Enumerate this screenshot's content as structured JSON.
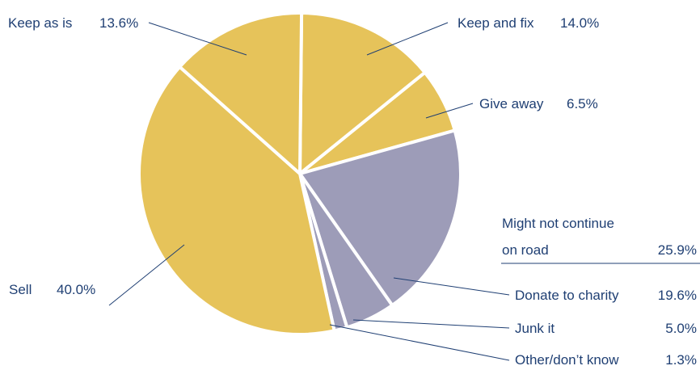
{
  "chart_data": {
    "type": "pie",
    "title": "",
    "slices": [
      {
        "label": "Keep and fix",
        "value": 14.0,
        "display": "14.0%",
        "color": "#e6c35a"
      },
      {
        "label": "Give away",
        "value": 6.5,
        "display": "6.5%",
        "color": "#e6c35a"
      },
      {
        "label": "Donate to charity",
        "value": 19.6,
        "display": "19.6%",
        "color": "#9d9cb8"
      },
      {
        "label": "Junk it",
        "value": 5.0,
        "display": "5.0%",
        "color": "#9d9cb8"
      },
      {
        "label": "Other/don’t know",
        "value": 1.3,
        "display": "1.3%",
        "color": "#9d9cb8"
      },
      {
        "label": "Sell",
        "value": 40.0,
        "display": "40.0%",
        "color": "#e6c35a"
      },
      {
        "label": "Keep as is",
        "value": 13.6,
        "display": "13.6%",
        "color": "#e6c35a"
      }
    ],
    "group": {
      "label_line1": "Might not continue",
      "label_line2": "on road",
      "value": 25.9,
      "display": "25.9%",
      "members": [
        "Donate to charity",
        "Junk it",
        "Other/don’t know"
      ]
    },
    "legend": "none"
  },
  "colors": {
    "continue_on_road": "#e6c35a",
    "not_continue_on_road": "#9d9cb8",
    "separator": "#ffffff",
    "label_text": "#1f3f73"
  }
}
